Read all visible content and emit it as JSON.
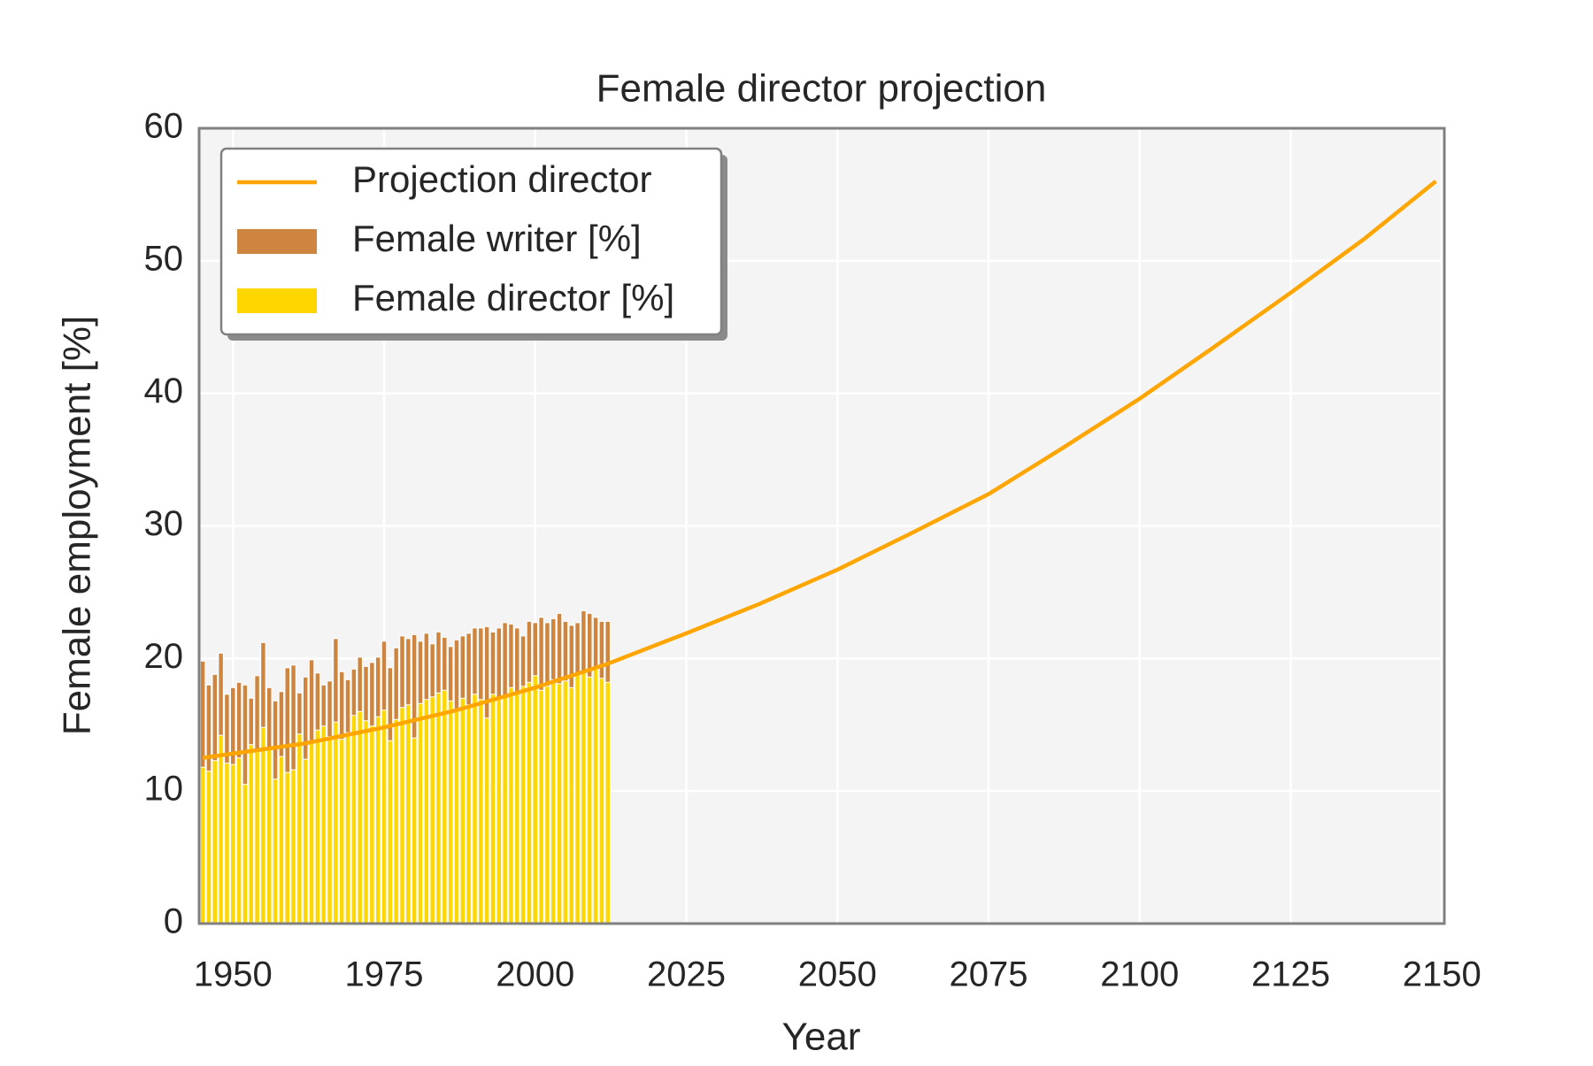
{
  "chart_data": {
    "type": "combo",
    "title": "Female director projection",
    "xlabel": "Year",
    "ylabel": "Female employment [%]",
    "x": [
      1945,
      1946,
      1947,
      1948,
      1949,
      1950,
      1951,
      1952,
      1953,
      1954,
      1955,
      1956,
      1957,
      1958,
      1959,
      1960,
      1961,
      1962,
      1963,
      1964,
      1965,
      1966,
      1967,
      1968,
      1969,
      1970,
      1971,
      1972,
      1973,
      1974,
      1975,
      1976,
      1977,
      1978,
      1979,
      1980,
      1981,
      1982,
      1983,
      1984,
      1985,
      1986,
      1987,
      1988,
      1989,
      1990,
      1991,
      1992,
      1993,
      1994,
      1995,
      1996,
      1997,
      1998,
      1999,
      2000,
      2001,
      2002,
      2003,
      2004,
      2005,
      2006,
      2007,
      2008,
      2009,
      2010,
      2011,
      2012
    ],
    "series": [
      {
        "name": "Female writer [%]",
        "color": "#cd853f",
        "type": "bar",
        "values": [
          19.8,
          18.0,
          18.8,
          20.4,
          17.3,
          17.8,
          18.2,
          18.0,
          17.0,
          18.7,
          21.2,
          17.8,
          16.8,
          17.5,
          19.3,
          19.5,
          17.4,
          18.6,
          19.9,
          18.9,
          18.0,
          18.3,
          21.5,
          19.0,
          18.4,
          19.2,
          20.1,
          19.4,
          19.7,
          20.1,
          21.3,
          19.3,
          20.8,
          21.7,
          21.5,
          21.8,
          21.3,
          21.9,
          21.1,
          22.0,
          21.6,
          20.9,
          21.4,
          21.7,
          21.9,
          22.3,
          22.3,
          22.4,
          22.0,
          22.3,
          22.7,
          22.6,
          22.3,
          21.7,
          22.8,
          22.7,
          23.1,
          22.7,
          23.0,
          23.4,
          22.8,
          22.5,
          22.7,
          23.6,
          23.4,
          23.1,
          22.8,
          22.8
        ]
      },
      {
        "name": "Female director [%]",
        "color": "#ffd700",
        "type": "bar",
        "values": [
          11.8,
          11.5,
          12.3,
          14.2,
          12.1,
          12.0,
          12.5,
          10.5,
          13.5,
          13.0,
          14.8,
          13.2,
          10.9,
          12.6,
          11.4,
          11.6,
          14.3,
          12.4,
          13.8,
          14.6,
          14.9,
          14.1,
          15.2,
          13.9,
          14.4,
          15.7,
          16.0,
          15.3,
          14.9,
          15.6,
          16.1,
          13.8,
          15.4,
          16.3,
          16.5,
          14.0,
          16.6,
          16.9,
          17.1,
          17.4,
          17.6,
          16.8,
          16.2,
          17.0,
          16.5,
          17.3,
          16.9,
          15.5,
          17.3,
          16.9,
          17.2,
          17.8,
          17.5,
          17.9,
          18.2,
          18.7,
          17.6,
          17.9,
          18.4,
          18.1,
          18.3,
          17.8,
          18.8,
          19.0,
          18.6,
          19.2,
          18.5,
          18.2
        ]
      },
      {
        "name": "Projection director",
        "color": "#ffa500",
        "type": "line",
        "x": [
          1945,
          1962,
          1975,
          1987,
          2000,
          2012,
          2025,
          2037,
          2050,
          2062,
          2075,
          2087,
          2100,
          2112,
          2125,
          2137,
          2149
        ],
        "values": [
          12.5,
          13.6,
          14.8,
          16.1,
          17.8,
          19.6,
          21.9,
          24.1,
          26.7,
          29.4,
          32.4,
          35.8,
          39.6,
          43.4,
          47.6,
          51.6,
          56.0
        ]
      }
    ],
    "xlim": [
      1944.4,
      2150.4
    ],
    "ylim": [
      0,
      60
    ],
    "xticks": [
      1950,
      1975,
      2000,
      2025,
      2050,
      2075,
      2100,
      2125,
      2150
    ],
    "yticks": [
      0,
      10,
      20,
      30,
      40,
      50,
      60
    ],
    "grid": true,
    "legend": "upper left"
  }
}
